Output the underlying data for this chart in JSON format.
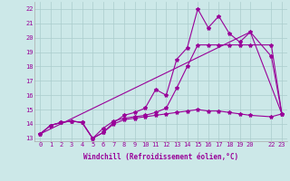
{
  "xlabel": "Windchill (Refroidissement éolien,°C)",
  "bg_color": "#cce8e8",
  "grid_color": "#aacccc",
  "line_color": "#990099",
  "xlim": [
    -0.5,
    23.5
  ],
  "ylim": [
    12.8,
    22.5
  ],
  "yticks": [
    13,
    14,
    15,
    16,
    17,
    18,
    19,
    20,
    21,
    22
  ],
  "xticks": [
    0,
    1,
    2,
    3,
    4,
    5,
    6,
    7,
    8,
    9,
    10,
    11,
    12,
    13,
    14,
    15,
    16,
    17,
    18,
    19,
    20,
    22,
    23
  ],
  "line1_x": [
    0,
    1,
    2,
    3,
    4,
    5,
    6,
    7,
    8,
    9,
    10,
    11,
    12,
    13,
    14,
    15,
    16,
    17,
    18,
    19,
    20,
    22,
    23
  ],
  "line1_y": [
    13.3,
    13.9,
    14.1,
    14.2,
    14.1,
    13.0,
    13.4,
    14.1,
    14.6,
    14.8,
    15.1,
    16.4,
    16.0,
    18.5,
    19.3,
    22.0,
    20.7,
    21.5,
    20.3,
    19.7,
    20.4,
    18.7,
    14.7
  ],
  "line2_x": [
    0,
    1,
    2,
    3,
    4,
    5,
    6,
    7,
    8,
    9,
    10,
    11,
    12,
    13,
    14,
    15,
    16,
    17,
    18,
    19,
    20,
    22,
    23
  ],
  "line2_y": [
    13.3,
    13.9,
    14.1,
    14.2,
    14.1,
    13.0,
    13.7,
    14.2,
    14.4,
    14.5,
    14.6,
    14.8,
    15.1,
    16.5,
    18.0,
    19.5,
    19.5,
    19.5,
    19.5,
    19.5,
    19.5,
    19.5,
    14.7
  ],
  "line3_x": [
    0,
    20,
    23
  ],
  "line3_y": [
    13.3,
    20.4,
    14.7
  ],
  "line4_x": [
    0,
    1,
    2,
    3,
    4,
    5,
    6,
    7,
    8,
    9,
    10,
    11,
    12,
    13,
    14,
    15,
    16,
    17,
    18,
    19,
    20,
    22,
    23
  ],
  "line4_y": [
    13.3,
    13.9,
    14.1,
    14.2,
    14.1,
    13.0,
    13.4,
    14.0,
    14.3,
    14.4,
    14.5,
    14.6,
    14.7,
    14.8,
    14.9,
    15.0,
    14.9,
    14.9,
    14.8,
    14.7,
    14.6,
    14.5,
    14.7
  ],
  "lw": 0.8,
  "ms": 3.0,
  "tick_fontsize": 5,
  "xlabel_fontsize": 5.5
}
